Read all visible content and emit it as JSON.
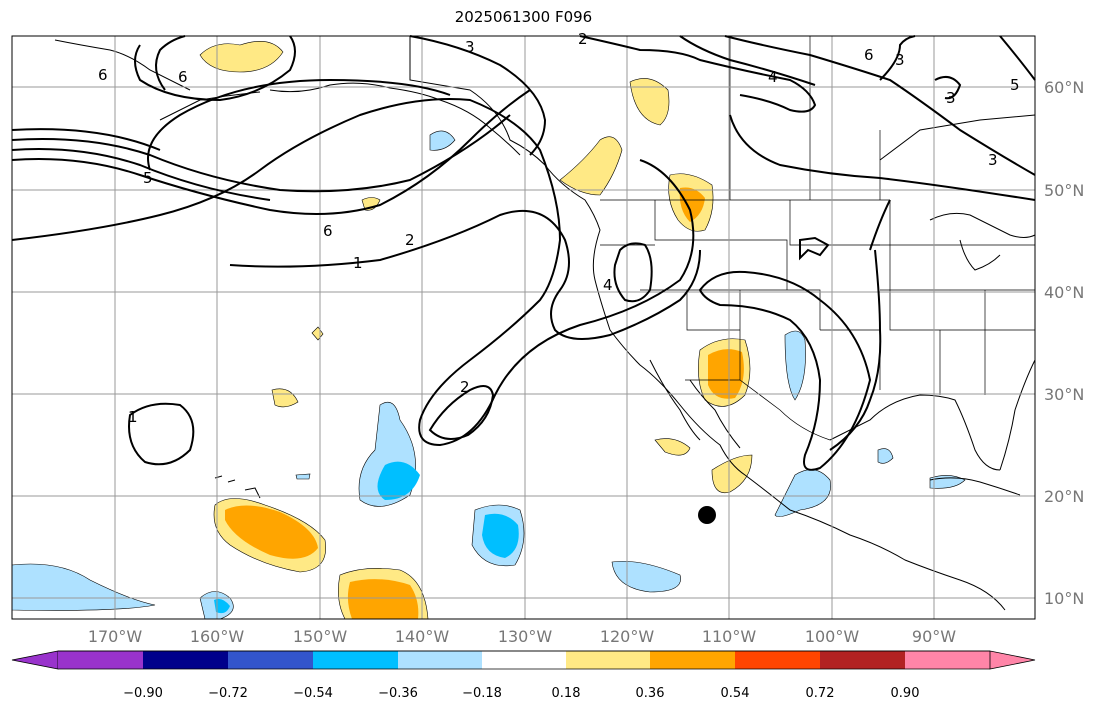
{
  "title": "2025061300 F096",
  "map": {
    "lon_labels": [
      "170°W",
      "160°W",
      "150°W",
      "140°W",
      "130°W",
      "120°W",
      "110°W",
      "100°W",
      "90°W"
    ],
    "lat_labels": [
      "60°N",
      "50°N",
      "40°N",
      "30°N",
      "20°N",
      "10°N"
    ],
    "contour_labels": [
      "6",
      "6",
      "5",
      "6",
      "2",
      "1",
      "3",
      "2",
      "4",
      "6",
      "3",
      "3",
      "5",
      "3",
      "4",
      "2",
      "1"
    ],
    "marker": "black-dot"
  },
  "colorbar": {
    "ticks": [
      "−0.90",
      "−0.72",
      "−0.54",
      "−0.36",
      "−0.18",
      "0.18",
      "0.36",
      "0.54",
      "0.72",
      "0.90"
    ],
    "colors": [
      "#9933cc",
      "#00008b",
      "#3355cc",
      "#00bfff",
      "#aee1ff",
      "#ffffff",
      "#ffe985",
      "#ffa500",
      "#ff4500",
      "#b22222",
      "#ff85a8"
    ]
  }
}
